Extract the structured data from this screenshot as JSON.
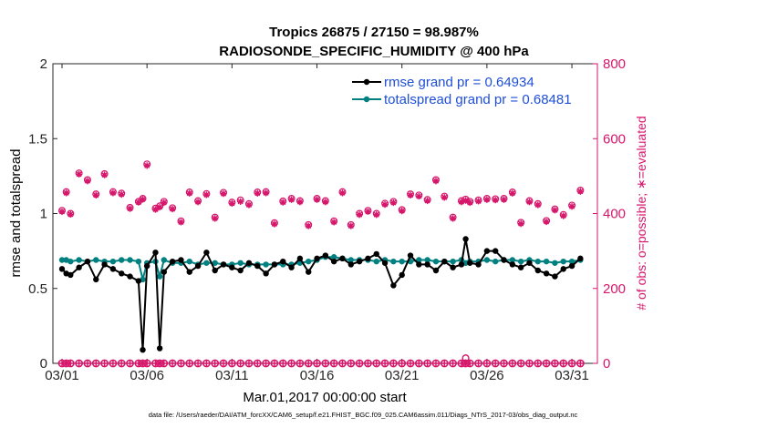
{
  "chart_data": {
    "type": "line",
    "title": "Tropics 26875 / 27150 = 98.987%",
    "subtitle": "RADIOSONDE_SPECIFIC_HUMIDITY @ 400 hPa",
    "xlabel": "Mar.01,2017 00:00:00 start",
    "ylabel_left": "rmse and totalspread",
    "ylabel_right": "# of obs: o=possible; ∗=evaluated",
    "ylim_left": [
      0,
      2
    ],
    "ylim_right": [
      0,
      800
    ],
    "xlim": [
      0,
      31.5
    ],
    "x_ticks": [
      {
        "x": 0,
        "label": "03/01"
      },
      {
        "x": 5,
        "label": "03/06"
      },
      {
        "x": 10,
        "label": "03/11"
      },
      {
        "x": 15,
        "label": "03/16"
      },
      {
        "x": 20,
        "label": "03/21"
      },
      {
        "x": 25,
        "label": "03/26"
      },
      {
        "x": 30,
        "label": "03/31"
      }
    ],
    "y_ticks_left": [
      "0",
      "0.5",
      "1",
      "1.5",
      "2"
    ],
    "y_ticks_right": [
      "0",
      "200",
      "400",
      "600",
      "800"
    ],
    "legend_location": "top-right",
    "series": [
      {
        "name": "rmse grand pr = 0.64934",
        "color": "#000000",
        "axis": "left",
        "marker": "circle",
        "x": [
          0,
          0.25,
          0.5,
          1,
          1.5,
          2,
          2.5,
          3,
          3.5,
          4,
          4.5,
          4.75,
          5,
          5.5,
          5.75,
          6,
          6.5,
          7,
          7.5,
          8,
          8.5,
          9,
          9.5,
          10,
          10.5,
          11,
          11.5,
          12,
          12.5,
          13,
          13.5,
          14,
          14.5,
          15,
          15.5,
          16,
          16.5,
          17,
          17.5,
          18,
          18.5,
          19,
          19.5,
          20,
          20.5,
          21,
          21.5,
          22,
          22.5,
          23,
          23.5,
          23.75,
          24,
          24.5,
          25,
          25.5,
          26,
          26.5,
          27,
          27.5,
          28,
          28.5,
          29,
          29.5,
          30,
          30.5
        ],
        "values": [
          0.63,
          0.6,
          0.59,
          0.64,
          0.68,
          0.56,
          0.66,
          0.63,
          0.6,
          0.58,
          0.55,
          0.09,
          0.65,
          0.74,
          0.1,
          0.61,
          0.68,
          0.69,
          0.61,
          0.65,
          0.74,
          0.62,
          0.66,
          0.64,
          0.62,
          0.67,
          0.65,
          0.6,
          0.66,
          0.68,
          0.64,
          0.7,
          0.61,
          0.7,
          0.72,
          0.68,
          0.7,
          0.66,
          0.68,
          0.7,
          0.73,
          0.67,
          0.52,
          0.59,
          0.72,
          0.66,
          0.66,
          0.62,
          0.68,
          0.64,
          0.66,
          0.83,
          0.67,
          0.66,
          0.75,
          0.75,
          0.69,
          0.66,
          0.64,
          0.67,
          0.62,
          0.6,
          0.58,
          0.63,
          0.65,
          0.7
        ]
      },
      {
        "name": "totalspread grand pr = 0.68481",
        "color": "#008080",
        "axis": "left",
        "marker": "circle",
        "x": [
          0,
          0.25,
          0.5,
          1,
          1.5,
          2,
          2.5,
          3,
          3.5,
          4,
          4.5,
          4.75,
          5,
          5.5,
          5.75,
          6,
          6.5,
          7,
          7.5,
          8,
          8.5,
          9,
          9.5,
          10,
          10.5,
          11,
          11.5,
          12,
          12.5,
          13,
          13.5,
          14,
          14.5,
          15,
          15.5,
          16,
          16.5,
          17,
          17.5,
          18,
          18.5,
          19,
          19.5,
          20,
          20.5,
          21,
          21.5,
          22,
          22.5,
          23,
          23.5,
          23.75,
          24,
          24.5,
          25,
          25.5,
          26,
          26.5,
          27,
          27.5,
          28,
          28.5,
          29,
          29.5,
          30,
          30.5
        ],
        "values": [
          0.69,
          0.69,
          0.68,
          0.69,
          0.68,
          0.69,
          0.68,
          0.68,
          0.69,
          0.69,
          0.68,
          0.56,
          0.67,
          0.68,
          0.58,
          0.69,
          0.67,
          0.67,
          0.68,
          0.66,
          0.67,
          0.67,
          0.66,
          0.66,
          0.67,
          0.66,
          0.66,
          0.66,
          0.66,
          0.66,
          0.66,
          0.67,
          0.68,
          0.69,
          0.71,
          0.71,
          0.7,
          0.69,
          0.69,
          0.69,
          0.68,
          0.69,
          0.68,
          0.68,
          0.68,
          0.69,
          0.69,
          0.68,
          0.68,
          0.68,
          0.69,
          0.67,
          0.68,
          0.68,
          0.69,
          0.68,
          0.69,
          0.69,
          0.68,
          0.69,
          0.68,
          0.68,
          0.67,
          0.68,
          0.68,
          0.69
        ]
      },
      {
        "name": "obs possible",
        "color": "#d6166b",
        "axis": "right",
        "marker": "open-circle",
        "x": [
          0,
          0.25,
          0.5,
          1,
          1.5,
          2,
          2.5,
          3,
          3.5,
          4,
          4.5,
          4.75,
          5,
          5.5,
          5.75,
          6,
          6.5,
          7,
          7.5,
          8,
          8.5,
          9,
          9.5,
          10,
          10.5,
          11,
          11.5,
          12,
          12.5,
          13,
          13.5,
          14,
          14.5,
          15,
          15.5,
          16,
          16.5,
          17,
          17.5,
          18,
          18.5,
          19,
          19.5,
          20,
          20.5,
          21,
          21.5,
          22,
          22.5,
          23,
          23.5,
          23.75,
          24,
          24.5,
          25,
          25.5,
          26,
          26.5,
          27,
          27.5,
          28,
          28.5,
          29,
          29.5,
          30,
          30.5
        ],
        "values": [
          408,
          458,
          400,
          508,
          490,
          452,
          506,
          458,
          454,
          416,
          432,
          440,
          532,
          414,
          420,
          432,
          415,
          380,
          457,
          434,
          453,
          390,
          456,
          430,
          436,
          426,
          457,
          458,
          375,
          433,
          440,
          434,
          370,
          440,
          434,
          380,
          458,
          370,
          400,
          408,
          400,
          427,
          432,
          410,
          452,
          449,
          437,
          490,
          446,
          390,
          434,
          438,
          432,
          436,
          440,
          439,
          440,
          457,
          376,
          434,
          426,
          381,
          412,
          397,
          422,
          462
        ]
      },
      {
        "name": "obs evaluated",
        "color": "#d6166b",
        "axis": "right",
        "marker": "asterisk",
        "x": [
          0,
          0.25,
          0.5,
          1,
          1.5,
          2,
          2.5,
          3,
          3.5,
          4,
          4.5,
          4.75,
          5,
          5.5,
          5.75,
          6,
          6.5,
          7,
          7.5,
          8,
          8.5,
          9,
          9.5,
          10,
          10.5,
          11,
          11.5,
          12,
          12.5,
          13,
          13.5,
          14,
          14.5,
          15,
          15.5,
          16,
          16.5,
          17,
          17.5,
          18,
          18.5,
          19,
          19.5,
          20,
          20.5,
          21,
          21.5,
          22,
          22.5,
          23,
          23.5,
          23.75,
          24,
          24.5,
          25,
          25.5,
          26,
          26.5,
          27,
          27.5,
          28,
          28.5,
          29,
          29.5,
          30,
          30.5
        ],
        "values": [
          405,
          455,
          398,
          505,
          487,
          449,
          503,
          455,
          451,
          413,
          430,
          438,
          528,
          411,
          417,
          429,
          412,
          377,
          454,
          431,
          450,
          387,
          453,
          427,
          432,
          423,
          454,
          455,
          372,
          430,
          437,
          431,
          367,
          437,
          431,
          377,
          455,
          367,
          397,
          405,
          397,
          424,
          429,
          407,
          449,
          446,
          434,
          487,
          443,
          387,
          431,
          435,
          429,
          433,
          437,
          436,
          437,
          454,
          373,
          431,
          423,
          378,
          409,
          394,
          419,
          459
        ]
      }
    ],
    "baseline_series": {
      "name": "obs not evaluated",
      "color": "#d6166b",
      "axis": "right",
      "values_constant": 0,
      "spike": {
        "x": 23.75,
        "value": 14
      }
    }
  },
  "legend": {
    "rmse_label": "rmse grand pr = 0.64934",
    "spread_label": "totalspread grand pr = 0.68481"
  },
  "footer": "data file: /Users/raeder/DAI/ATM_forcXX/CAM6_setup/f.e21.FHIST_BGC.f09_025.CAM6assim.011/Diags_NTrS_2017-03/obs_diag_output.nc"
}
